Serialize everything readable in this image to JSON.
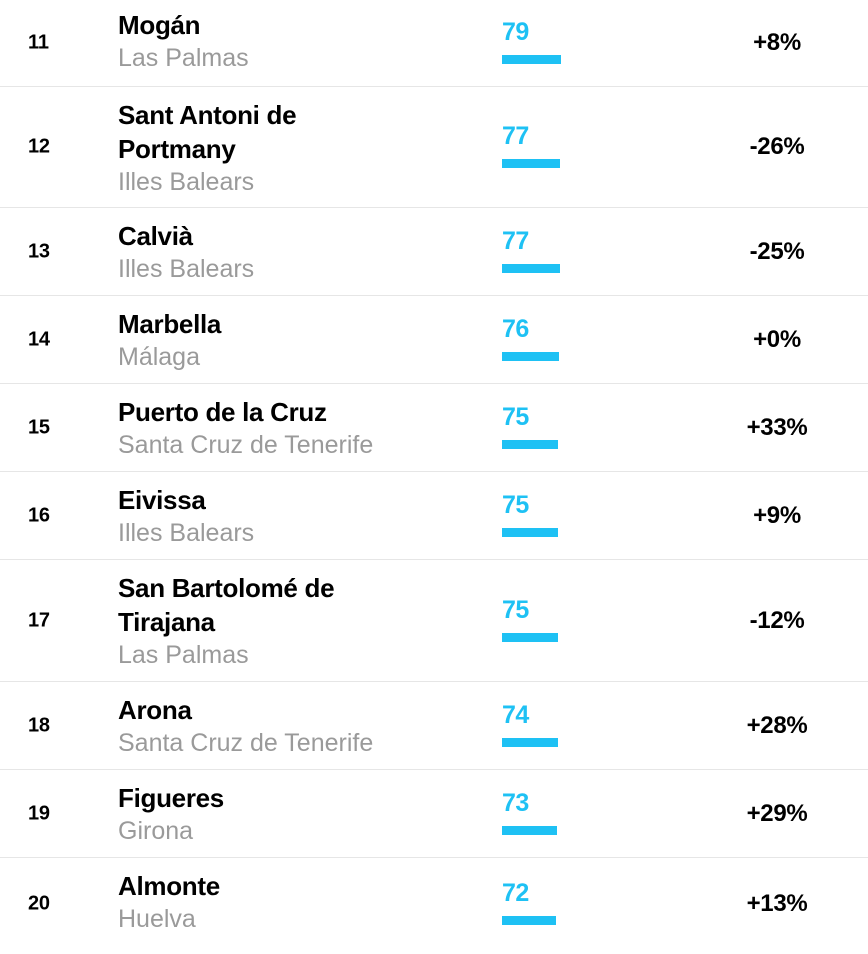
{
  "rows": [
    {
      "rank": "11",
      "name": "Mogán",
      "province": "Las Palmas",
      "score": "79",
      "score_value": 79,
      "change": "+8%"
    },
    {
      "rank": "12",
      "name": "Sant Antoni de Portmany",
      "province": "Illes Balears",
      "score": "77",
      "score_value": 77,
      "change": "-26%"
    },
    {
      "rank": "13",
      "name": "Calvià",
      "province": "Illes Balears",
      "score": "77",
      "score_value": 77,
      "change": "-25%"
    },
    {
      "rank": "14",
      "name": "Marbella",
      "province": "Málaga",
      "score": "76",
      "score_value": 76,
      "change": "+0%"
    },
    {
      "rank": "15",
      "name": "Puerto de la Cruz",
      "province": "Santa Cruz de Tenerife",
      "score": "75",
      "score_value": 75,
      "change": "+33%"
    },
    {
      "rank": "16",
      "name": "Eivissa",
      "province": "Illes Balears",
      "score": "75",
      "score_value": 75,
      "change": "+9%"
    },
    {
      "rank": "17",
      "name": "San Bartolomé de Tirajana",
      "province": "Las Palmas",
      "score": "75",
      "score_value": 75,
      "change": "-12%"
    },
    {
      "rank": "18",
      "name": "Arona",
      "province": "Santa Cruz de Tenerife",
      "score": "74",
      "score_value": 74,
      "change": "+28%"
    },
    {
      "rank": "19",
      "name": "Figueres",
      "province": "Girona",
      "score": "73",
      "score_value": 73,
      "change": "+29%"
    },
    {
      "rank": "20",
      "name": "Almonte",
      "province": "Huelva",
      "score": "72",
      "score_value": 72,
      "change": "+13%"
    }
  ],
  "colors": {
    "accent": "#1ec1f4",
    "province_text": "#9a9a9a",
    "divider": "#e6e6e6"
  }
}
